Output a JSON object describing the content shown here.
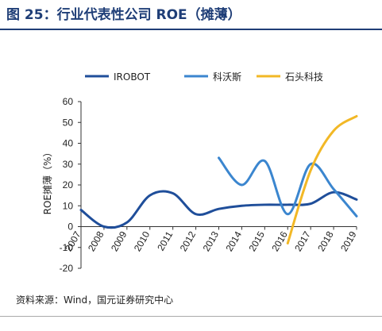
{
  "figure_title": "图 25：行业代表性公司 ROE（摊薄）",
  "source_note": "资料来源：Wind，国元证券研究中心",
  "colors": {
    "title": "#1F3E77",
    "irobot": "#1F4E9A",
    "ecovacs": "#3B86CF",
    "roborock": "#F2B826",
    "axis": "#333333"
  },
  "chart_data": {
    "type": "line",
    "ylabel": "ROE摊薄（%）",
    "xlabel": "",
    "x": [
      "2007",
      "2008",
      "2009",
      "2010",
      "2011",
      "2012",
      "2013",
      "2014",
      "2015",
      "2016",
      "2017",
      "2018",
      "2019"
    ],
    "ylim": [
      -20,
      60
    ],
    "yticks": [
      -20,
      -10,
      0,
      10,
      20,
      30,
      40,
      50,
      60
    ],
    "grid": false,
    "legend_position": "top",
    "series": [
      {
        "name": "IROBOT",
        "color": "#1F4E9A",
        "values": [
          8,
          0,
          2,
          15,
          16,
          6,
          8.5,
          10,
          10.5,
          10.5,
          11,
          16.5,
          13
        ]
      },
      {
        "name": "科沃斯",
        "color": "#3B86CF",
        "values": [
          null,
          null,
          null,
          null,
          null,
          null,
          33,
          20,
          31.5,
          6,
          30,
          18,
          5
        ]
      },
      {
        "name": "石头科技",
        "color": "#F2B826",
        "values": [
          null,
          null,
          null,
          null,
          null,
          null,
          null,
          null,
          null,
          -8,
          27,
          46,
          53
        ]
      }
    ]
  }
}
